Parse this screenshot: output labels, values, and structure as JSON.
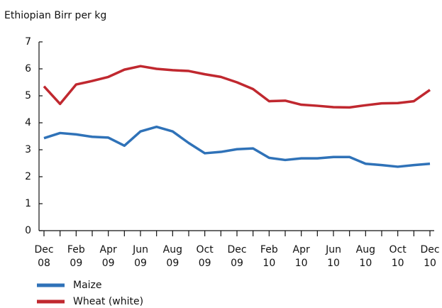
{
  "chart_data": {
    "type": "line",
    "y_axis_label": "Ethiopian Birr per kg",
    "categories": [
      "Dec 08",
      null,
      "Feb 09",
      null,
      "Apr 09",
      null,
      "Jun 09",
      null,
      "Aug 09",
      null,
      "Oct 09",
      null,
      "Dec 09",
      null,
      "Feb 10",
      null,
      "Apr 10",
      null,
      "Jun 10",
      null,
      "Aug 10",
      null,
      "Oct 10",
      null,
      "Dec 10"
    ],
    "series": [
      {
        "name": "Maize",
        "color": "#2f72b8",
        "values": [
          3.43,
          3.62,
          3.57,
          3.48,
          3.45,
          3.15,
          3.68,
          3.85,
          3.68,
          3.25,
          2.87,
          2.92,
          3.02,
          3.05,
          2.7,
          2.62,
          2.68,
          2.68,
          2.73,
          2.73,
          2.48,
          2.43,
          2.37,
          2.43,
          2.48
        ]
      },
      {
        "name": "Wheat (white)",
        "color": "#c0282f",
        "values": [
          5.35,
          4.7,
          5.42,
          5.55,
          5.7,
          5.97,
          6.1,
          6.0,
          5.95,
          5.92,
          5.8,
          5.7,
          5.5,
          5.25,
          4.8,
          4.82,
          4.67,
          4.63,
          4.58,
          4.57,
          4.65,
          4.72,
          4.73,
          4.8,
          5.22
        ]
      }
    ],
    "ylim": [
      0,
      7
    ],
    "yticks": [
      0,
      1,
      2,
      3,
      4,
      5,
      6,
      7
    ],
    "grid": false,
    "legend": "bottom"
  }
}
